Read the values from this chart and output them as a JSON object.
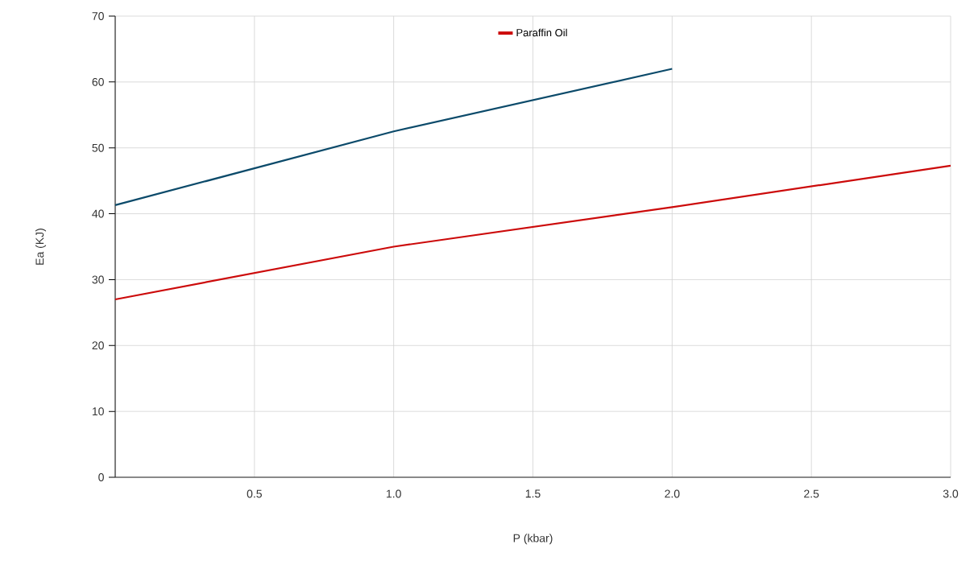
{
  "chart_data": {
    "type": "line",
    "xlabel": "P (kbar)",
    "ylabel": "Ea (KJ)",
    "x": [
      0,
      1,
      2,
      3
    ],
    "series": [
      {
        "name": "Paraffin Oil",
        "color": "#cc0a0a",
        "values": [
          27,
          35,
          41,
          47.3
        ]
      },
      {
        "color": "#0b4a6a",
        "values": [
          41.3,
          52.5,
          62,
          null
        ]
      }
    ],
    "xlim": [
      0,
      3
    ],
    "ylim": [
      0,
      70
    ],
    "xticks": [
      0.5,
      {
        "value": 1,
        "label": "1.0"
      },
      1.5,
      {
        "value": 2,
        "label": "2.0"
      },
      2.5,
      {
        "value": 3,
        "label": "3.0"
      }
    ],
    "yticks": [
      0,
      10,
      20,
      30,
      40,
      50,
      60,
      70
    ],
    "grid": true,
    "legend": "top"
  }
}
